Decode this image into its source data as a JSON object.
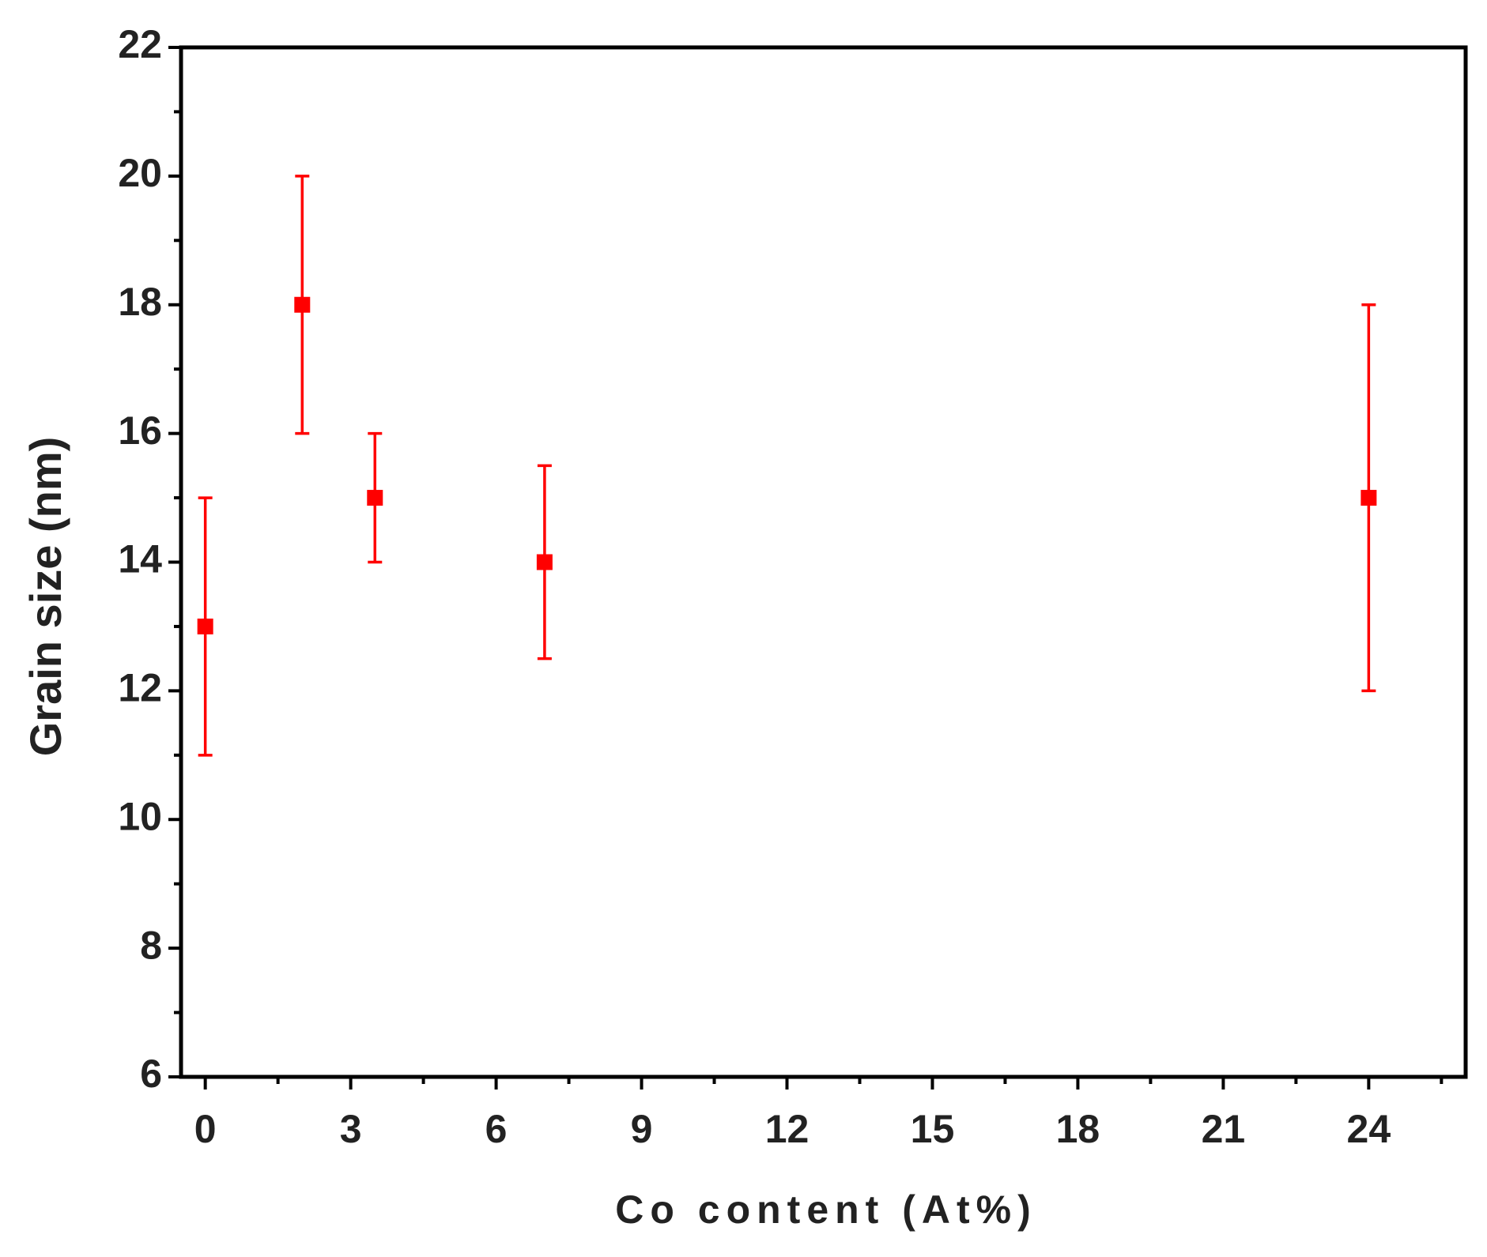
{
  "chart_data": {
    "type": "scatter",
    "x_label": "Co content (At%)",
    "y_label": "Grain size (nm)",
    "series": [
      {
        "name": "Grain size",
        "color": "#ff0000",
        "x": [
          0,
          2,
          3.5,
          7,
          24
        ],
        "values": [
          13,
          18,
          15,
          14,
          15
        ],
        "errors": [
          2,
          2,
          1,
          1.5,
          3
        ]
      }
    ],
    "xlim": [
      -0.5,
      26
    ],
    "ylim": [
      6,
      22
    ],
    "xticks": [
      0,
      3,
      6,
      9,
      12,
      15,
      18,
      21,
      24
    ],
    "yticks": [
      6,
      8,
      10,
      12,
      14,
      16,
      18,
      20,
      22
    ],
    "xminorticks": [
      1.5,
      4.5,
      7.5,
      10.5,
      13.5,
      16.5,
      19.5,
      22.5,
      25.5
    ],
    "yminorticks": [
      7,
      9,
      11,
      13,
      15,
      17,
      19,
      21
    ],
    "grid": false
  }
}
